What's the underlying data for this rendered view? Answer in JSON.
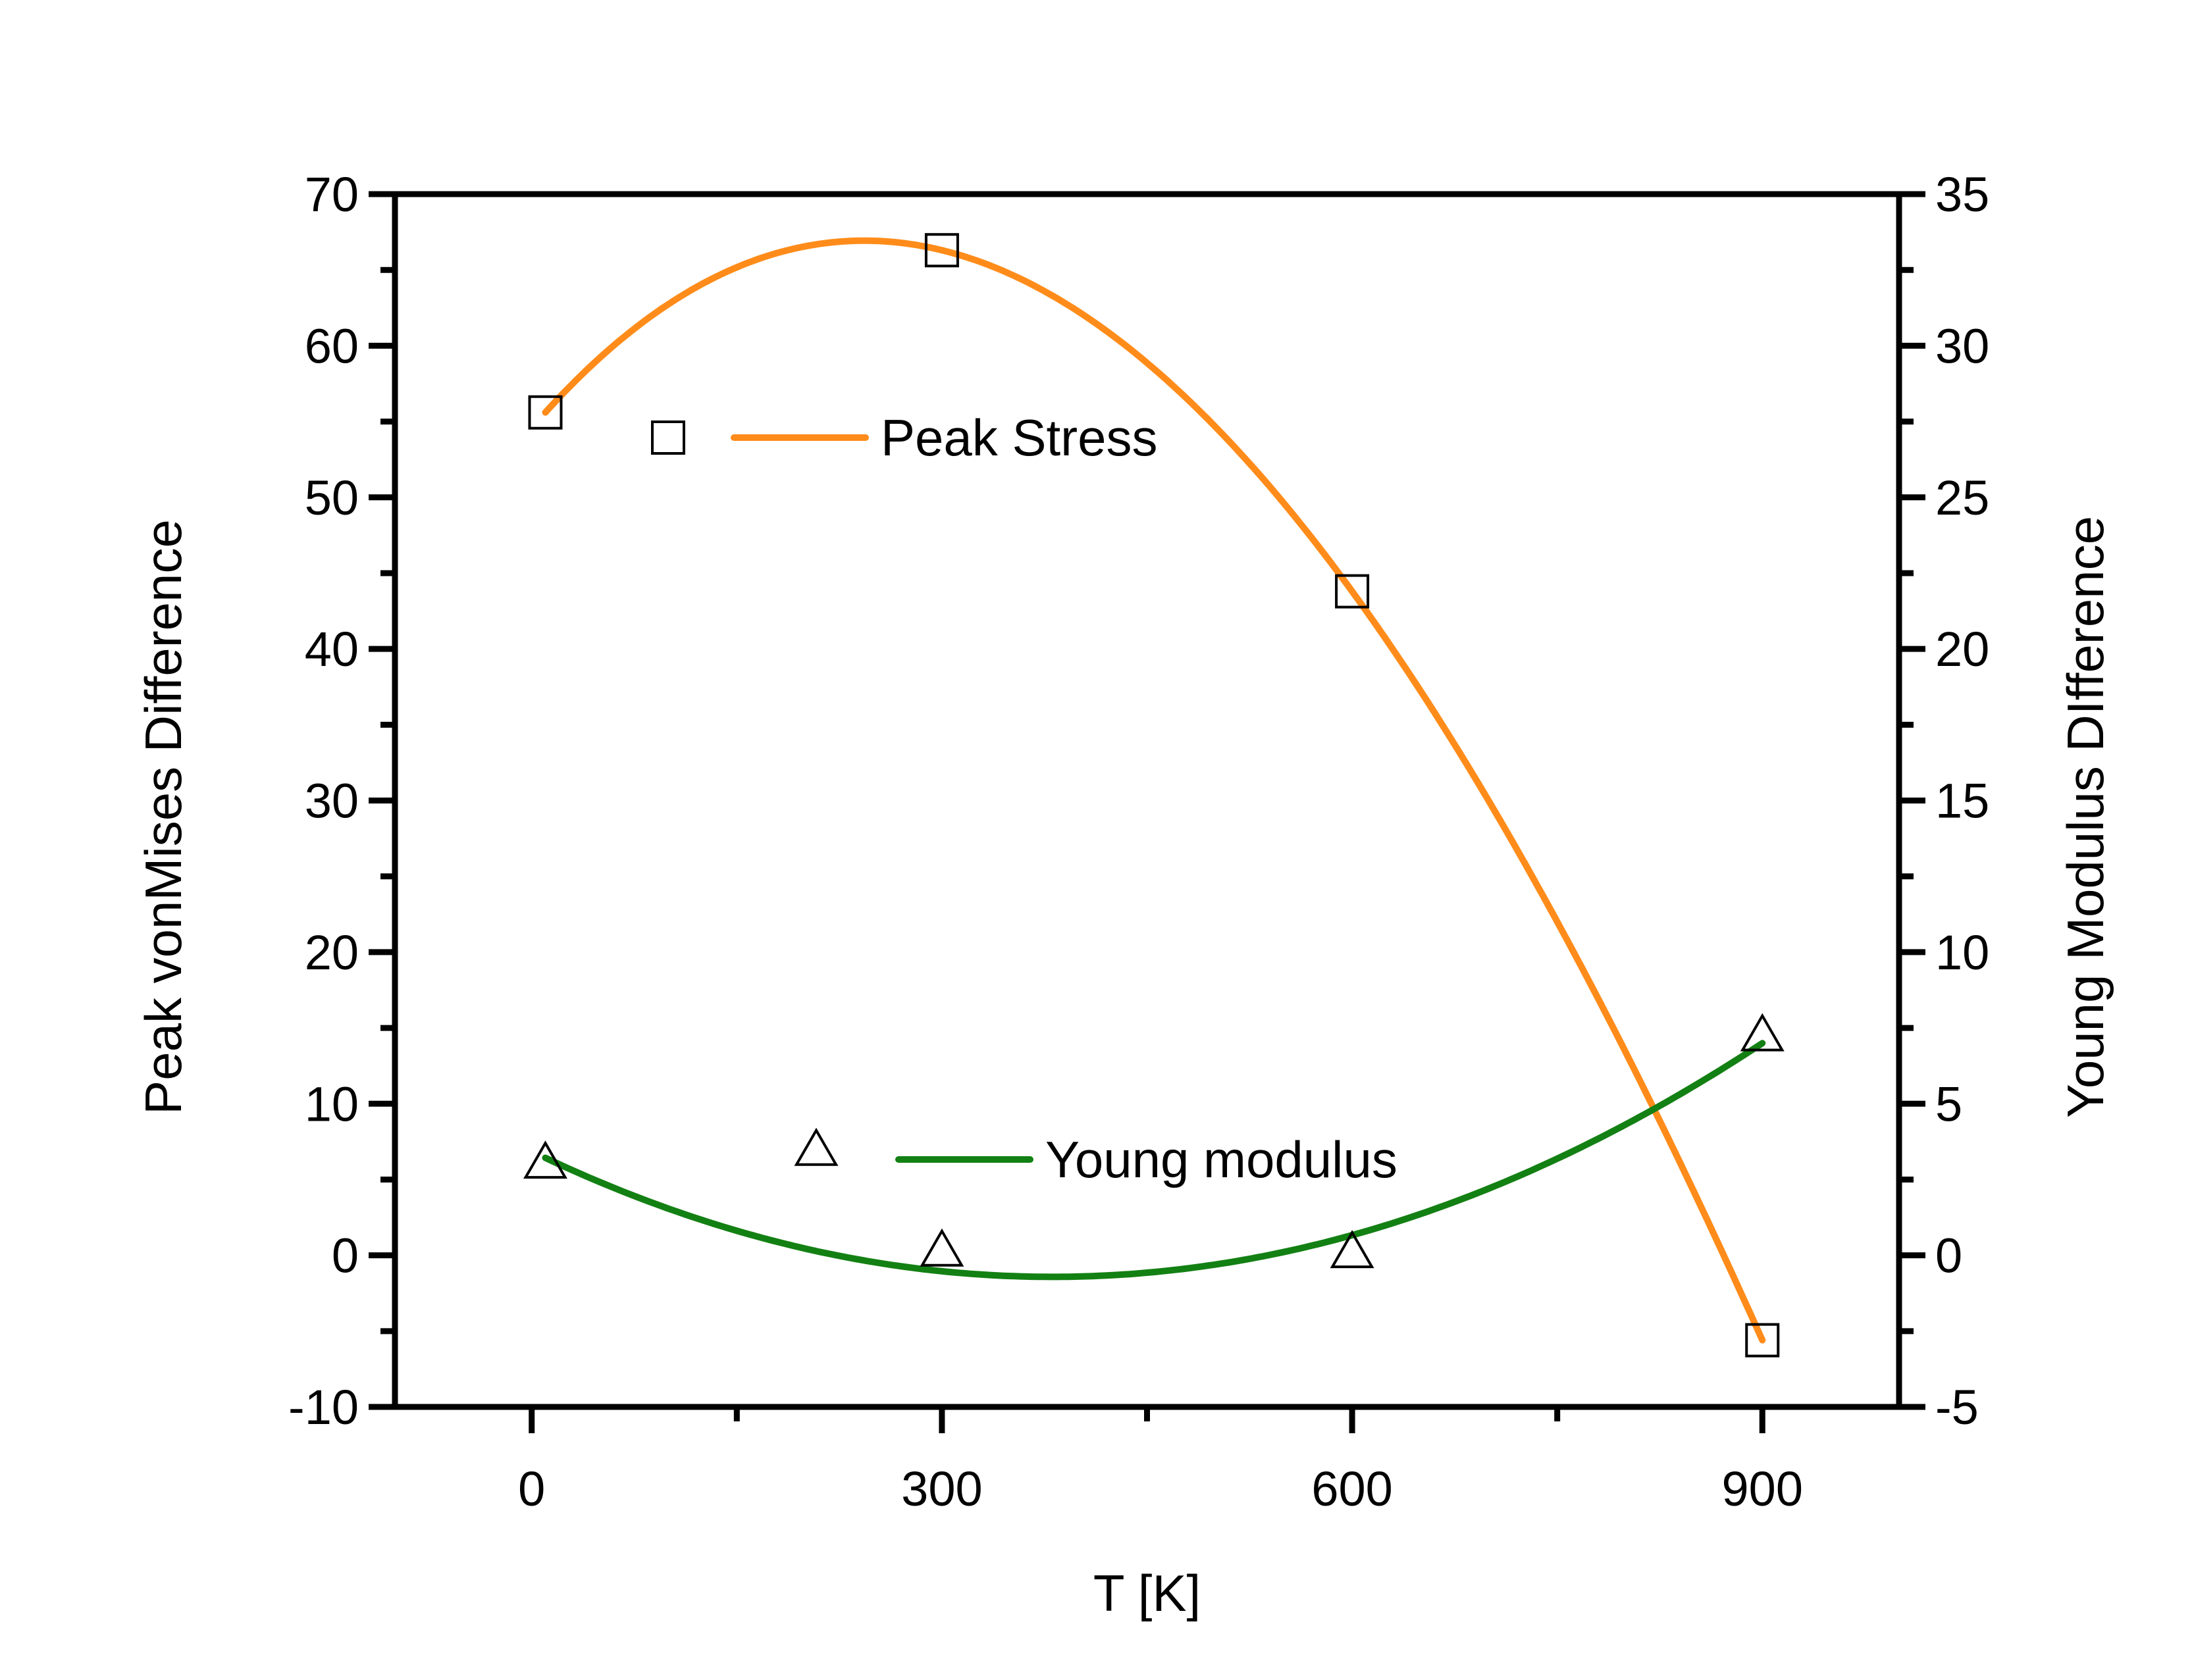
{
  "chart_data": {
    "type": "scatter",
    "xlabel": "T  [K]",
    "ylabel_left": "Peak vonMises Difference",
    "ylabel_right": "Young Modulus DIfference",
    "xlim": [
      -100,
      1000
    ],
    "ylim_left": [
      -10,
      70
    ],
    "ylim_right": [
      -5,
      35
    ],
    "x_ticks": [
      0,
      300,
      600,
      900
    ],
    "y_left_ticks": [
      -10,
      0,
      10,
      20,
      30,
      40,
      50,
      60,
      70
    ],
    "y_right_ticks": [
      -5,
      0,
      5,
      10,
      15,
      20,
      25,
      30,
      35
    ],
    "series": [
      {
        "name": "Peak Stress",
        "axis": "left",
        "marker": "square",
        "fit": "cubic",
        "color": "#ff8c1a",
        "points": [
          {
            "x": 10,
            "y": 55.6
          },
          {
            "x": 300,
            "y": 66.3
          },
          {
            "x": 600,
            "y": 43.8
          },
          {
            "x": 900,
            "y": -5.6
          }
        ]
      },
      {
        "name": "Young modulus",
        "axis": "right",
        "marker": "triangle",
        "fit": "quadratic",
        "color": "#138013",
        "points": [
          {
            "x": 10,
            "y": 3.0
          },
          {
            "x": 300,
            "y": 0.1
          },
          {
            "x": 600,
            "y": 0.05
          },
          {
            "x": 900,
            "y": 7.2
          }
        ]
      }
    ],
    "legend": [
      {
        "label": "Peak Stress",
        "marker": "square",
        "color": "#ff8c1a"
      },
      {
        "label": "Young modulus",
        "marker": "triangle",
        "color": "#138013"
      }
    ]
  }
}
